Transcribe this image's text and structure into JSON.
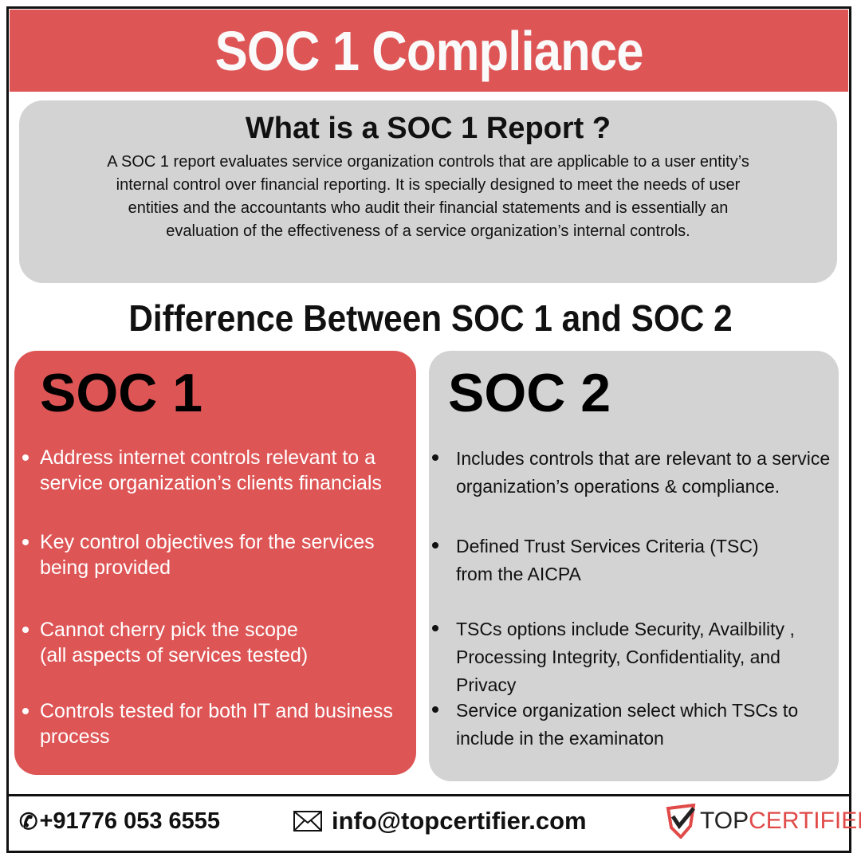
{
  "header": {
    "title": "SOC 1 Compliance"
  },
  "what": {
    "title": "What is a SOC 1 Report ?",
    "lines": [
      "A SOC 1 report evaluates service organization controls that are applicable to a user entity’s",
      "internal control over financial reporting. It is specially designed to meet the needs of user",
      "entities and the accountants who audit their financial statements and is essentially an",
      "evaluation of the effectiveness of a service organization’s internal controls."
    ]
  },
  "difference": {
    "title": "Difference Between SOC 1 and SOC 2"
  },
  "soc1": {
    "title": "SOC 1",
    "bullets": [
      "Address internet controls relevant to a service organization’s clients financials",
      "Key control objectives for the services being provided",
      "Cannot cherry pick the scope (all aspects of services tested)",
      "Controls tested for both IT and business process"
    ]
  },
  "soc2": {
    "title": "SOC 2",
    "bullets": [
      "Includes controls that are relevant to a service organization’s operations & compliance.",
      "Defined Trust Services Criteria (TSC) from the AICPA",
      "TSCs options include Security, Availbility , Processing Integrity, Confidentiality, and Privacy",
      "Service organization select which TSCs to include in the examinaton"
    ]
  },
  "footer": {
    "phone": "+91776 053 6555",
    "email": "info@topcertifier.com",
    "logo_top": "TOP",
    "logo_cert": "CERTIFIER"
  },
  "colors": {
    "accent": "#de5556",
    "panel": "#d3d3d3"
  }
}
